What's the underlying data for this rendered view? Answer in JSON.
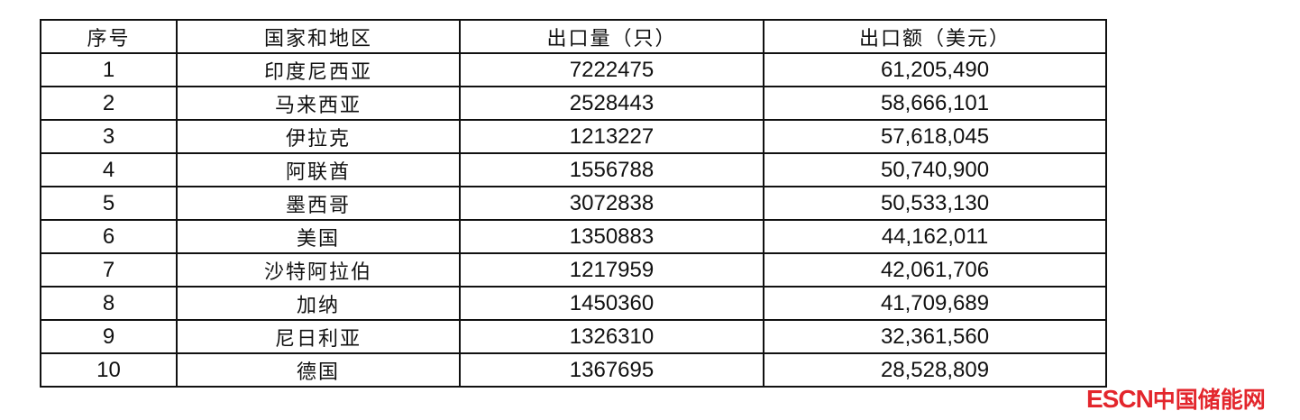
{
  "table": {
    "headers": [
      "序号",
      "国家和地区",
      "出口量（只）",
      "出口额（美元）"
    ],
    "rows": [
      [
        "1",
        "印度尼西亚",
        "7222475",
        "61,205,490"
      ],
      [
        "2",
        "马来西亚",
        "2528443",
        "58,666,101"
      ],
      [
        "3",
        "伊拉克",
        "1213227",
        "57,618,045"
      ],
      [
        "4",
        "阿联酋",
        "1556788",
        "50,740,900"
      ],
      [
        "5",
        "墨西哥",
        "3072838",
        "50,533,130"
      ],
      [
        "6",
        "美国",
        "1350883",
        "44,162,011"
      ],
      [
        "7",
        "沙特阿拉伯",
        "1217959",
        "42,061,706"
      ],
      [
        "8",
        "加纳",
        "1450360",
        "41,709,689"
      ],
      [
        "9",
        "尼日利亚",
        "1326310",
        "32,361,560"
      ],
      [
        "10",
        "德国",
        "1367695",
        "28,528,809"
      ]
    ]
  },
  "watermark": {
    "latin": "ESCN",
    "chinese": "中国储能网",
    "color": "#e3262c"
  }
}
